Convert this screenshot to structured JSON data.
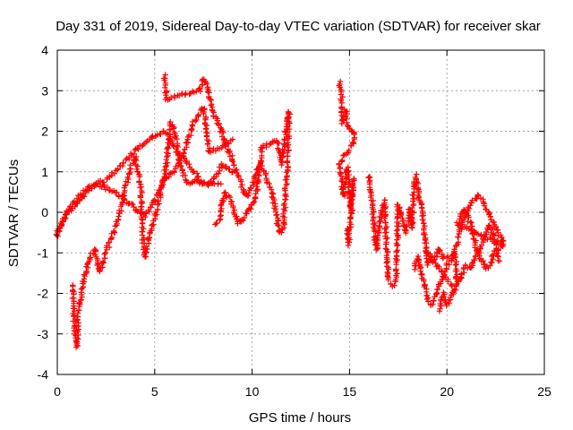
{
  "chart_data": {
    "type": "scatter",
    "title": "Day 331 of 2019, Sidereal Day-to-day VTEC variation (SDTVAR) for receiver skar",
    "xlabel": "GPS time / hours",
    "ylabel": "SDTVAR / TECUs",
    "xlim": [
      0,
      25
    ],
    "ylim": [
      -4,
      4
    ],
    "xticks": [
      "0",
      "5",
      "10",
      "15",
      "20",
      "25"
    ],
    "yticks": [
      "-4",
      "-3",
      "-2",
      "-1",
      "0",
      "1",
      "2",
      "3",
      "4"
    ],
    "grid": true,
    "marker": "plus",
    "series": [
      {
        "name": "SDTVAR",
        "color": "#ff0000",
        "segments": [
          {
            "points": [
              [
                0.0,
                -0.5
              ],
              [
                0.3,
                -0.2
              ],
              [
                0.6,
                0.1
              ],
              [
                1.0,
                0.3
              ],
              [
                1.5,
                0.6
              ],
              [
                2.0,
                0.7
              ],
              [
                2.5,
                0.6
              ],
              [
                3.0,
                0.5
              ],
              [
                3.5,
                0.3
              ],
              [
                4.0,
                0.1
              ],
              [
                4.5,
                -0.1
              ],
              [
                5.0,
                0.3
              ],
              [
                5.5,
                0.8
              ],
              [
                6.0,
                1.0
              ],
              [
                6.5,
                1.5
              ],
              [
                7.0,
                2.2
              ],
              [
                7.5,
                2.6
              ],
              [
                7.8,
                1.5
              ],
              [
                8.5,
                1.6
              ],
              [
                9.0,
                1.8
              ]
            ]
          },
          {
            "points": [
              [
                0.0,
                -0.6
              ],
              [
                0.2,
                -0.3
              ],
              [
                0.5,
                0.0
              ],
              [
                1.0,
                0.2
              ],
              [
                1.5,
                0.5
              ],
              [
                2.0,
                0.7
              ],
              [
                2.5,
                0.8
              ],
              [
                3.0,
                1.0
              ],
              [
                3.5,
                1.3
              ],
              [
                4.0,
                1.5
              ],
              [
                4.5,
                1.7
              ],
              [
                5.0,
                1.9
              ],
              [
                5.5,
                2.0
              ],
              [
                6.0,
                1.6
              ],
              [
                6.5,
                1.3
              ],
              [
                7.0,
                1.0
              ],
              [
                7.5,
                0.7
              ],
              [
                8.0,
                0.8
              ],
              [
                8.5,
                1.2
              ],
              [
                9.0,
                1.0
              ]
            ]
          },
          {
            "points": [
              [
                0.8,
                -1.8
              ],
              [
                0.9,
                -3.0
              ],
              [
                1.0,
                -3.3
              ],
              [
                1.1,
                -2.4
              ],
              [
                1.3,
                -1.8
              ],
              [
                1.6,
                -1.2
              ],
              [
                1.9,
                -0.9
              ],
              [
                2.2,
                -1.5
              ],
              [
                2.5,
                -1.0
              ],
              [
                2.8,
                -0.6
              ],
              [
                3.1,
                -0.2
              ],
              [
                3.4,
                0.4
              ],
              [
                3.7,
                1.0
              ],
              [
                4.0,
                1.4
              ],
              [
                4.3,
                0.6
              ],
              [
                4.4,
                -0.7
              ],
              [
                4.5,
                -1.1
              ],
              [
                4.8,
                -0.5
              ],
              [
                5.2,
                0.2
              ],
              [
                5.6,
                1.2
              ],
              [
                5.8,
                2.2
              ],
              [
                6.0,
                2.1
              ],
              [
                6.3,
                1.2
              ],
              [
                6.6,
                0.8
              ],
              [
                6.9,
                0.7
              ],
              [
                7.2,
                0.8
              ],
              [
                7.5,
                0.7
              ],
              [
                7.8,
                0.7
              ],
              [
                8.1,
                0.7
              ],
              [
                8.4,
                0.7
              ]
            ]
          },
          {
            "points": [
              [
                5.5,
                3.35
              ],
              [
                5.6,
                2.8
              ],
              [
                7.3,
                3.0
              ],
              [
                7.5,
                3.3
              ],
              [
                7.7,
                3.1
              ],
              [
                8.0,
                2.4
              ],
              [
                8.3,
                2.2
              ],
              [
                8.6,
                1.7
              ],
              [
                8.9,
                1.4
              ],
              [
                9.2,
                1.0
              ],
              [
                9.5,
                0.6
              ],
              [
                9.8,
                0.4
              ],
              [
                10.1,
                0.8
              ],
              [
                10.4,
                1.2
              ],
              [
                10.7,
                0.9
              ],
              [
                11.0,
                0.5
              ],
              [
                11.2,
                0.0
              ],
              [
                11.4,
                -0.5
              ],
              [
                11.6,
                -0.4
              ],
              [
                11.8,
                1.2
              ],
              [
                11.9,
                2.5
              ],
              [
                11.7,
                1.8
              ],
              [
                11.5,
                1.2
              ],
              [
                11.3,
                1.8
              ],
              [
                10.5,
                1.6
              ],
              [
                10.2,
                0.4
              ],
              [
                10.0,
                0.2
              ],
              [
                9.6,
                -0.1
              ],
              [
                9.3,
                -0.3
              ],
              [
                8.9,
                0.3
              ],
              [
                8.6,
                0.5
              ],
              [
                8.3,
                -0.2
              ],
              [
                8.1,
                -0.3
              ]
            ]
          },
          {
            "points": [
              [
                14.5,
                3.2
              ],
              [
                14.6,
                2.8
              ],
              [
                14.65,
                2.2
              ],
              [
                14.8,
                2.5
              ],
              [
                14.9,
                2.1
              ],
              [
                15.2,
                2.0
              ],
              [
                15.3,
                1.8
              ],
              [
                14.5,
                1.2
              ],
              [
                14.6,
                0.8
              ],
              [
                14.7,
                0.4
              ],
              [
                14.8,
                0.9
              ],
              [
                14.9,
                1.1
              ],
              [
                15.0,
                0.4
              ],
              [
                15.1,
                0.0
              ],
              [
                15.2,
                0.8
              ],
              [
                14.95,
                -0.8
              ],
              [
                14.9,
                -0.4
              ]
            ]
          },
          {
            "points": [
              [
                16.0,
                0.9
              ],
              [
                16.1,
                0.5
              ],
              [
                16.2,
                0.1
              ],
              [
                16.3,
                -0.6
              ],
              [
                16.4,
                -0.9
              ],
              [
                16.5,
                -0.5
              ],
              [
                16.6,
                -0.1
              ],
              [
                16.8,
                0.3
              ],
              [
                16.9,
                -0.8
              ],
              [
                17.0,
                -1.7
              ],
              [
                17.2,
                -1.8
              ],
              [
                17.4,
                -1.7
              ],
              [
                17.5,
                0.2
              ],
              [
                17.7,
                -0.2
              ],
              [
                17.9,
                -0.5
              ],
              [
                18.0,
                -0.2
              ],
              [
                18.1,
                0.1
              ],
              [
                18.2,
                -0.4
              ],
              [
                18.3,
                0.6
              ],
              [
                18.4,
                0.9
              ],
              [
                18.5,
                0.6
              ],
              [
                18.6,
                0.3
              ],
              [
                18.7,
                0.2
              ],
              [
                18.8,
                -0.3
              ],
              [
                18.9,
                -0.8
              ],
              [
                19.0,
                -1.3
              ]
            ]
          },
          {
            "points": [
              [
                18.3,
                -1.4
              ],
              [
                18.5,
                -1.1
              ],
              [
                18.6,
                -1.3
              ],
              [
                18.8,
                -1.7
              ],
              [
                19.0,
                -2.1
              ],
              [
                19.2,
                -2.3
              ],
              [
                19.4,
                -2.1
              ],
              [
                19.6,
                -1.8
              ],
              [
                19.8,
                -1.6
              ],
              [
                20.0,
                -1.3
              ],
              [
                20.2,
                -1.2
              ],
              [
                20.4,
                -1.0
              ],
              [
                20.5,
                -1.8
              ],
              [
                20.6,
                -1.7
              ],
              [
                20.8,
                -1.5
              ],
              [
                21.0,
                -1.3
              ],
              [
                21.2,
                -1.4
              ],
              [
                21.4,
                -1.1
              ],
              [
                21.6,
                -1.0
              ],
              [
                21.8,
                -0.8
              ],
              [
                22.0,
                -0.5
              ],
              [
                22.2,
                -0.3
              ],
              [
                22.4,
                -0.6
              ],
              [
                22.6,
                -0.9
              ],
              [
                22.8,
                -0.8
              ],
              [
                22.9,
                -0.7
              ]
            ]
          },
          {
            "points": [
              [
                19.6,
                -2.4
              ],
              [
                19.8,
                -2.0
              ],
              [
                20.0,
                -2.3
              ],
              [
                20.2,
                -2.1
              ],
              [
                20.4,
                -1.9
              ],
              [
                19.0,
                -1.0
              ],
              [
                19.3,
                -1.2
              ],
              [
                19.6,
                -0.9
              ],
              [
                19.8,
                -1.1
              ],
              [
                20.3,
                -1.1
              ],
              [
                20.6,
                -0.6
              ],
              [
                20.8,
                -0.2
              ],
              [
                21.0,
                0.0
              ],
              [
                21.2,
                0.2
              ],
              [
                21.4,
                0.3
              ],
              [
                21.6,
                0.4
              ],
              [
                21.8,
                0.3
              ],
              [
                22.0,
                0.1
              ],
              [
                22.2,
                -0.1
              ],
              [
                22.4,
                -0.3
              ],
              [
                22.6,
                -0.5
              ],
              [
                22.8,
                -0.6
              ],
              [
                22.9,
                -0.8
              ],
              [
                20.5,
                -0.3
              ],
              [
                20.9,
                0.1
              ],
              [
                21.3,
                -0.4
              ],
              [
                21.5,
                -0.9
              ],
              [
                21.7,
                -1.1
              ],
              [
                22.0,
                -1.4
              ],
              [
                22.2,
                -1.3
              ],
              [
                22.5,
                -0.9
              ],
              [
                22.7,
                -1.2
              ]
            ]
          }
        ]
      }
    ]
  }
}
